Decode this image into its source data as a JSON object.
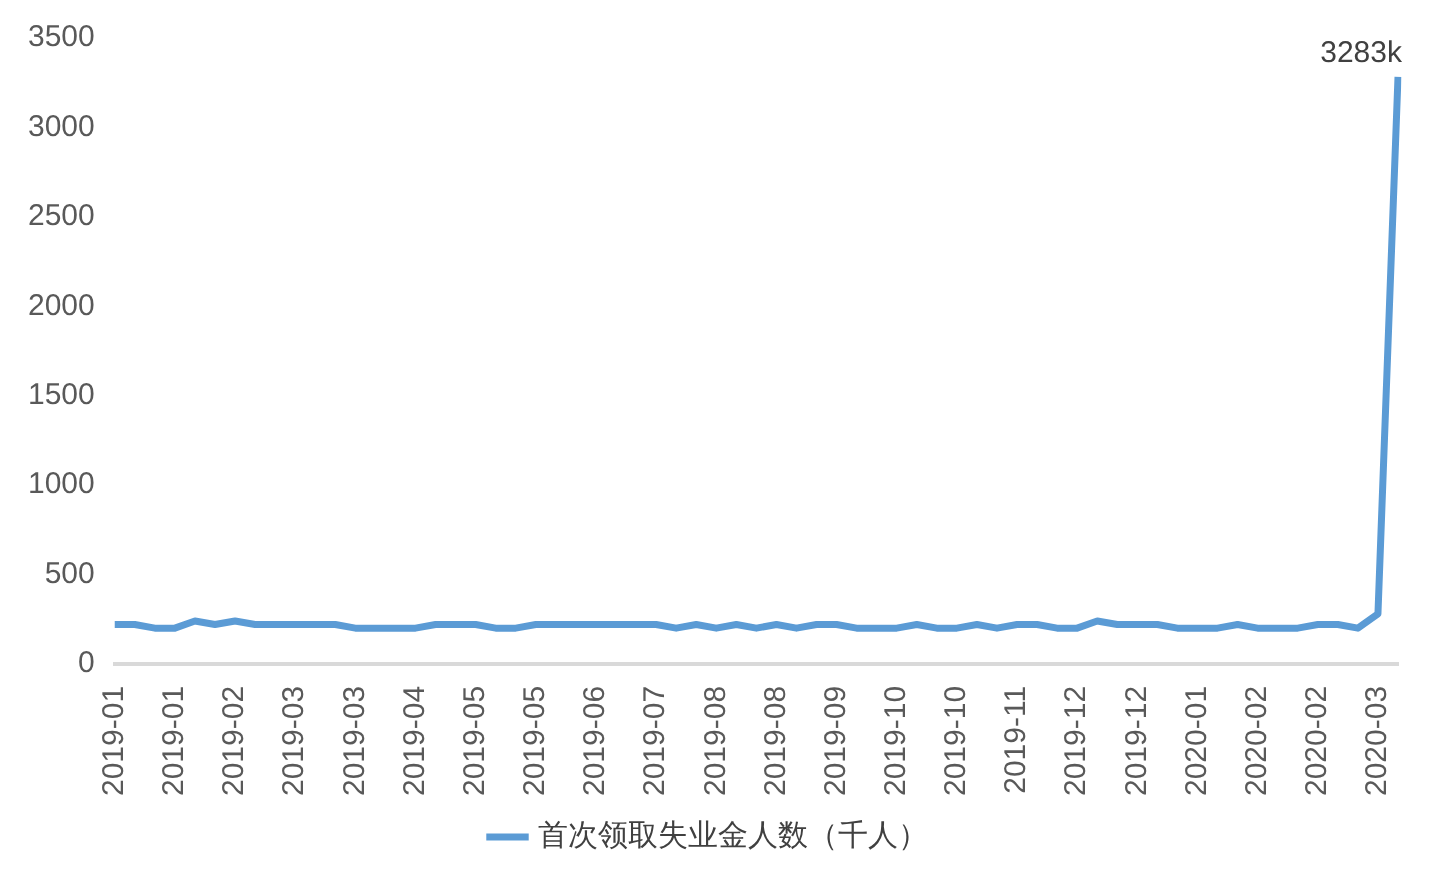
{
  "chart_data": {
    "type": "line",
    "categories": [
      "2019-01",
      null,
      null,
      "2019-01",
      null,
      null,
      "2019-02",
      null,
      null,
      "2019-03",
      null,
      null,
      "2019-03",
      null,
      null,
      "2019-04",
      null,
      null,
      "2019-05",
      null,
      null,
      "2019-05",
      null,
      null,
      "2019-06",
      null,
      null,
      "2019-07",
      null,
      null,
      "2019-08",
      null,
      null,
      "2019-08",
      null,
      null,
      "2019-09",
      null,
      null,
      "2019-10",
      null,
      null,
      "2019-10",
      null,
      null,
      "2019-11",
      null,
      null,
      "2019-12",
      null,
      null,
      "2019-12",
      null,
      null,
      "2020-01",
      null,
      null,
      "2020-02",
      null,
      null,
      "2020-02",
      null,
      null,
      "2020-03",
      null
    ],
    "series": [
      {
        "name": "首次领取失业金人数（千人）",
        "color": "#5b9bd5",
        "values": [
          220,
          220,
          200,
          200,
          240,
          220,
          240,
          220,
          220,
          220,
          220,
          220,
          200,
          200,
          200,
          200,
          220,
          220,
          220,
          200,
          200,
          220,
          220,
          220,
          220,
          220,
          220,
          220,
          200,
          220,
          200,
          220,
          200,
          220,
          200,
          220,
          220,
          200,
          200,
          200,
          220,
          200,
          200,
          220,
          200,
          220,
          220,
          200,
          200,
          240,
          220,
          220,
          220,
          200,
          200,
          200,
          220,
          200,
          200,
          200,
          220,
          220,
          200,
          280,
          3283
        ]
      }
    ],
    "ylim": [
      0,
      3500
    ],
    "yticks": [
      0,
      500,
      1000,
      1500,
      2000,
      2500,
      3000,
      3500
    ],
    "grid": false,
    "legend": "bottom",
    "marker": "none",
    "line_style": "solid",
    "annotations": [
      "3283k"
    ]
  }
}
